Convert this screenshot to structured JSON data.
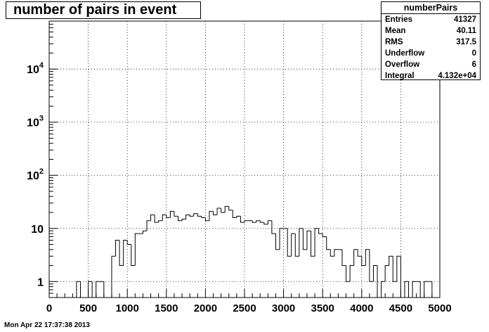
{
  "title": "number of pairs in event",
  "stats": {
    "name": "numberPairs",
    "rows": [
      {
        "label": "Entries",
        "value": "41327"
      },
      {
        "label": "Mean",
        "value": "40.11"
      },
      {
        "label": "RMS",
        "value": "317.5"
      },
      {
        "label": "Underflow",
        "value": "0"
      },
      {
        "label": "Overflow",
        "value": "6"
      },
      {
        "label": "Integral",
        "value": "4.132e+04"
      }
    ]
  },
  "footer": "Mon Apr 22 17:37:38 2013",
  "chart_data": {
    "type": "bar",
    "histogram": "step",
    "title": "number of pairs in event",
    "xlabel": "",
    "ylabel": "",
    "xlim": [
      0,
      5000
    ],
    "ylim": [
      0.5,
      80000
    ],
    "yscale": "log",
    "grid": true,
    "bin_width": 50,
    "x_ticks": [
      0,
      500,
      1000,
      1500,
      2000,
      2500,
      3000,
      3500,
      4000,
      4500,
      5000
    ],
    "y_tick_labels": [
      {
        "value": 1,
        "label": "1"
      },
      {
        "value": 10,
        "label": "10"
      },
      {
        "value": 100,
        "label": "10^2"
      },
      {
        "value": 1000,
        "label": "10^3"
      },
      {
        "value": 10000,
        "label": "10^4"
      }
    ],
    "bins": [
      {
        "x": 350,
        "y": 1
      },
      {
        "x": 400,
        "y": 0.5
      },
      {
        "x": 450,
        "y": 0.5
      },
      {
        "x": 500,
        "y": 1
      },
      {
        "x": 550,
        "y": 0.5
      },
      {
        "x": 600,
        "y": 1
      },
      {
        "x": 650,
        "y": 1
      },
      {
        "x": 700,
        "y": 0.5
      },
      {
        "x": 750,
        "y": 0.5
      },
      {
        "x": 800,
        "y": 3
      },
      {
        "x": 850,
        "y": 6
      },
      {
        "x": 900,
        "y": 2
      },
      {
        "x": 950,
        "y": 6
      },
      {
        "x": 1000,
        "y": 5
      },
      {
        "x": 1050,
        "y": 2
      },
      {
        "x": 1100,
        "y": 8
      },
      {
        "x": 1150,
        "y": 8
      },
      {
        "x": 1200,
        "y": 9
      },
      {
        "x": 1250,
        "y": 14
      },
      {
        "x": 1300,
        "y": 18
      },
      {
        "x": 1350,
        "y": 13
      },
      {
        "x": 1400,
        "y": 14
      },
      {
        "x": 1450,
        "y": 18
      },
      {
        "x": 1500,
        "y": 16
      },
      {
        "x": 1550,
        "y": 21
      },
      {
        "x": 1600,
        "y": 17
      },
      {
        "x": 1650,
        "y": 14
      },
      {
        "x": 1700,
        "y": 15
      },
      {
        "x": 1750,
        "y": 18
      },
      {
        "x": 1800,
        "y": 17
      },
      {
        "x": 1850,
        "y": 19
      },
      {
        "x": 1900,
        "y": 17
      },
      {
        "x": 1950,
        "y": 16
      },
      {
        "x": 2000,
        "y": 14
      },
      {
        "x": 2050,
        "y": 21
      },
      {
        "x": 2100,
        "y": 18
      },
      {
        "x": 2150,
        "y": 24
      },
      {
        "x": 2200,
        "y": 20
      },
      {
        "x": 2250,
        "y": 26
      },
      {
        "x": 2300,
        "y": 22
      },
      {
        "x": 2350,
        "y": 16
      },
      {
        "x": 2400,
        "y": 17
      },
      {
        "x": 2450,
        "y": 13
      },
      {
        "x": 2500,
        "y": 14
      },
      {
        "x": 2550,
        "y": 14
      },
      {
        "x": 2600,
        "y": 13
      },
      {
        "x": 2650,
        "y": 14
      },
      {
        "x": 2700,
        "y": 13
      },
      {
        "x": 2750,
        "y": 12
      },
      {
        "x": 2800,
        "y": 14
      },
      {
        "x": 2850,
        "y": 8
      },
      {
        "x": 2900,
        "y": 4
      },
      {
        "x": 2950,
        "y": 10
      },
      {
        "x": 3000,
        "y": 10
      },
      {
        "x": 3050,
        "y": 3
      },
      {
        "x": 3100,
        "y": 8
      },
      {
        "x": 3150,
        "y": 3
      },
      {
        "x": 3200,
        "y": 10
      },
      {
        "x": 3250,
        "y": 4
      },
      {
        "x": 3300,
        "y": 9
      },
      {
        "x": 3350,
        "y": 3
      },
      {
        "x": 3400,
        "y": 10
      },
      {
        "x": 3450,
        "y": 8
      },
      {
        "x": 3500,
        "y": 7
      },
      {
        "x": 3550,
        "y": 4
      },
      {
        "x": 3600,
        "y": 3
      },
      {
        "x": 3650,
        "y": 4
      },
      {
        "x": 3700,
        "y": 4
      },
      {
        "x": 3750,
        "y": 2
      },
      {
        "x": 3800,
        "y": 1
      },
      {
        "x": 3850,
        "y": 2
      },
      {
        "x": 3900,
        "y": 4
      },
      {
        "x": 3950,
        "y": 3
      },
      {
        "x": 4000,
        "y": 2
      },
      {
        "x": 4050,
        "y": 4
      },
      {
        "x": 4100,
        "y": 1
      },
      {
        "x": 4150,
        "y": 2
      },
      {
        "x": 4200,
        "y": 0.5
      },
      {
        "x": 4250,
        "y": 1
      },
      {
        "x": 4300,
        "y": 2
      },
      {
        "x": 4350,
        "y": 3
      },
      {
        "x": 4400,
        "y": 1
      },
      {
        "x": 4450,
        "y": 3
      },
      {
        "x": 4500,
        "y": 0.5
      },
      {
        "x": 4550,
        "y": 1
      },
      {
        "x": 4600,
        "y": 0.5
      },
      {
        "x": 4650,
        "y": 1
      },
      {
        "x": 4700,
        "y": 1
      },
      {
        "x": 4750,
        "y": 0.5
      },
      {
        "x": 4800,
        "y": 1
      },
      {
        "x": 4850,
        "y": 1
      }
    ],
    "colors": {
      "line": "#000000",
      "grid": "#000000",
      "background": "#ffffff"
    }
  }
}
